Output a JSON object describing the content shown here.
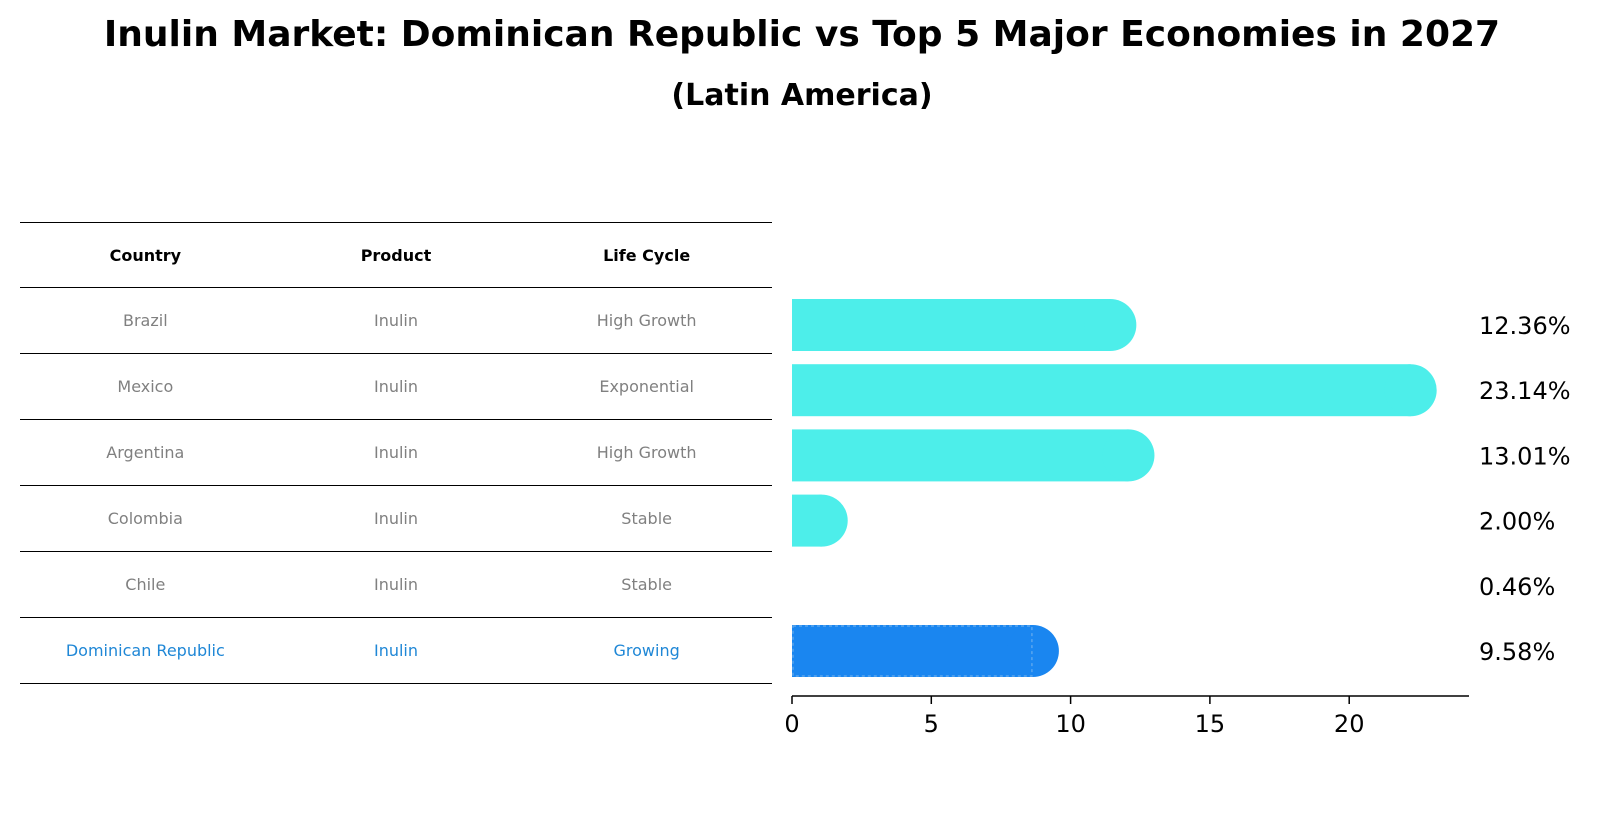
{
  "title": "Inulin Market: Dominican Republic vs Top 5 Major Economies in 2027",
  "subtitle": "(Latin America)",
  "table": {
    "headers": [
      "Country",
      "Product",
      "Life Cycle"
    ],
    "rows": [
      {
        "country": "Brazil",
        "product": "Inulin",
        "life_cycle": "High Growth"
      },
      {
        "country": "Mexico",
        "product": "Inulin",
        "life_cycle": "Exponential"
      },
      {
        "country": "Argentina",
        "product": "Inulin",
        "life_cycle": "High Growth"
      },
      {
        "country": "Colombia",
        "product": "Inulin",
        "life_cycle": "Stable"
      },
      {
        "country": "Chile",
        "product": "Inulin",
        "life_cycle": "Stable"
      },
      {
        "country": "Dominican Republic",
        "product": "Inulin",
        "life_cycle": "Growing"
      }
    ]
  },
  "colors": {
    "bar": "#4deeea",
    "highlight_bar": "#1a86f0",
    "highlight_text": "#1f87d6",
    "muted_text": "#808080"
  },
  "chart_data": {
    "type": "bar",
    "orientation": "horizontal",
    "categories": [
      "Brazil",
      "Mexico",
      "Argentina",
      "Colombia",
      "Chile",
      "Dominican Republic"
    ],
    "values": [
      12.36,
      23.14,
      13.01,
      2.0,
      0.46,
      9.58
    ],
    "value_labels": [
      "12.36%",
      "23.14%",
      "13.01%",
      "2.00%",
      "0.46%",
      "9.58%"
    ],
    "highlight_index": 5,
    "xlim": [
      0,
      24.3
    ],
    "xticks": [
      0,
      5,
      10,
      15,
      20
    ],
    "xtick_labels": [
      "0",
      "5",
      "10",
      "15",
      "20"
    ],
    "xlabel": "",
    "ylabel": "",
    "grid": false
  }
}
